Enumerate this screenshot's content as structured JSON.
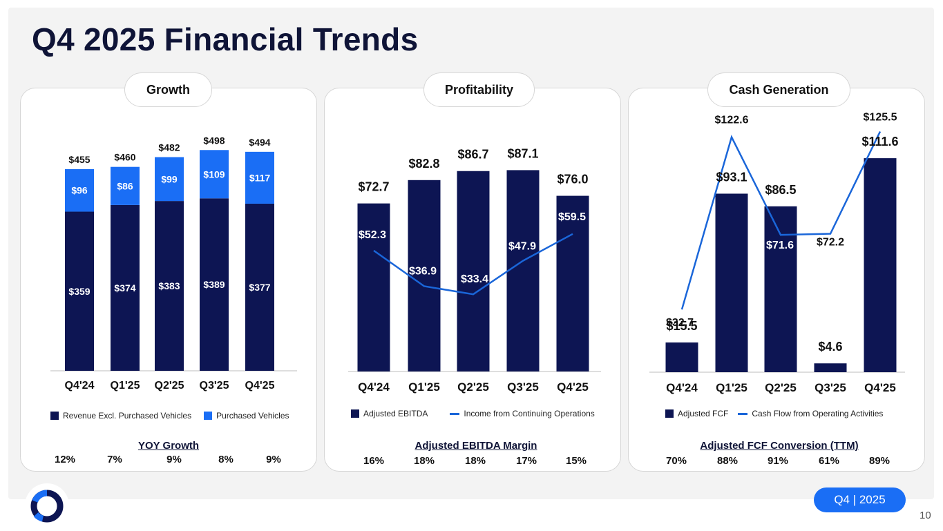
{
  "page": {
    "title": "Q4 2025 Financial Trends",
    "badge": "Q4 | 2025",
    "page_number": "10"
  },
  "colors": {
    "navy": "#0d1553",
    "blue": "#1a6ef5",
    "line": "#1a66d9"
  },
  "panels": [
    {
      "heading": "Growth",
      "legend": [
        "Revenue Excl. Purchased Vehicles",
        "Purchased Vehicles"
      ],
      "footer_title": "YOY Growth",
      "footer_values": [
        "12%",
        "7%",
        "9%",
        "8%",
        "9%"
      ]
    },
    {
      "heading": "Profitability",
      "legend": [
        "Adjusted EBITDA",
        "Income from Continuing Operations"
      ],
      "footer_title": "Adjusted EBITDA Margin",
      "footer_values": [
        "16%",
        "18%",
        "18%",
        "17%",
        "15%"
      ]
    },
    {
      "heading": "Cash Generation",
      "legend": [
        "Adjusted FCF",
        "Cash Flow from Operating Activities"
      ],
      "footer_title": "Adjusted FCF Conversion (TTM)",
      "footer_values": [
        "70%",
        "88%",
        "91%",
        "61%",
        "89%"
      ]
    }
  ],
  "chart_data": [
    {
      "type": "bar",
      "stacked": true,
      "title": "Growth",
      "categories": [
        "Q4'24",
        "Q1'25",
        "Q2'25",
        "Q3'25",
        "Q4'25"
      ],
      "series": [
        {
          "name": "Revenue Excl. Purchased Vehicles",
          "values": [
            359,
            374,
            383,
            389,
            377
          ],
          "labels": [
            "$359",
            "$374",
            "$383",
            "$389",
            "$377"
          ]
        },
        {
          "name": "Purchased Vehicles",
          "values": [
            96,
            86,
            99,
            109,
            117
          ],
          "labels": [
            "$96",
            "$86",
            "$99",
            "$109",
            "$117"
          ]
        }
      ],
      "totals": [
        455,
        460,
        482,
        498,
        494
      ],
      "total_labels": [
        "$455",
        "$460",
        "$482",
        "$498",
        "$494"
      ],
      "ylim": [
        0,
        500
      ]
    },
    {
      "type": "bar",
      "title": "Profitability",
      "categories": [
        "Q4'24",
        "Q1'25",
        "Q2'25",
        "Q3'25",
        "Q4'25"
      ],
      "series": [
        {
          "name": "Adjusted EBITDA",
          "type": "bar",
          "values": [
            72.7,
            82.8,
            86.7,
            87.1,
            76.0
          ],
          "labels": [
            "$72.7",
            "$82.8",
            "$86.7",
            "$87.1",
            "$76.0"
          ]
        },
        {
          "name": "Income from Continuing Operations",
          "type": "line",
          "values": [
            52.3,
            36.9,
            33.4,
            47.9,
            59.5
          ],
          "labels": [
            "$52.3",
            "$36.9",
            "$33.4",
            "$47.9",
            "$59.5"
          ]
        }
      ],
      "ylim": [
        0,
        92
      ]
    },
    {
      "type": "bar",
      "title": "Cash Generation",
      "categories": [
        "Q4'24",
        "Q1'25",
        "Q2'25",
        "Q3'25",
        "Q4'25"
      ],
      "series": [
        {
          "name": "Adjusted FCF",
          "type": "bar",
          "values": [
            15.5,
            93.1,
            86.5,
            4.6,
            111.6
          ],
          "labels": [
            "$15.5",
            "$93.1",
            "$86.5",
            "$4.6",
            "$111.6"
          ]
        },
        {
          "name": "Cash Flow from Operating Activities",
          "type": "line",
          "values": [
            32.7,
            122.6,
            71.6,
            72.2,
            125.5
          ],
          "labels": [
            "$32.7",
            "$122.6",
            "$71.6",
            "$72.2",
            "$125.5"
          ]
        }
      ],
      "ylim": [
        0,
        130
      ]
    }
  ]
}
